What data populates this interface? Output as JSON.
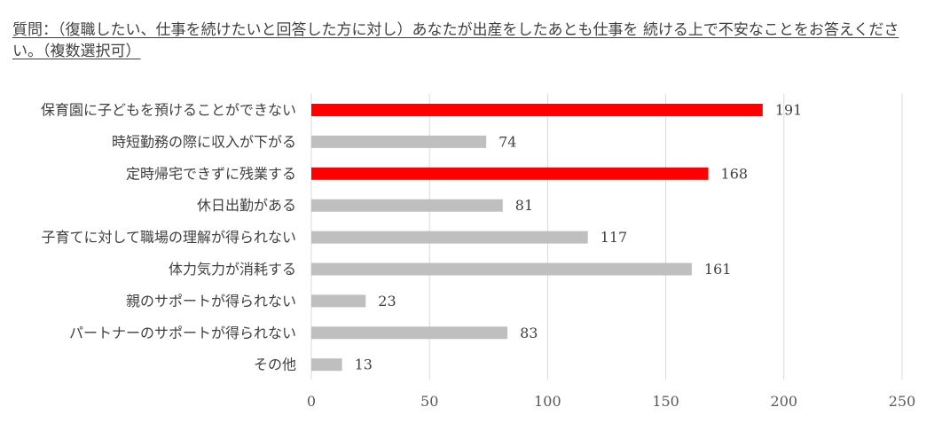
{
  "chart_data": {
    "type": "bar",
    "orientation": "horizontal",
    "title": "質問：（復職したい、仕事を続けたいと回答した方に対し）あなたが出産をしたあとも仕事を 続ける上で不安なことをお答えください。（複数選択可）",
    "categories": [
      "保育園に子どもを預けることができない",
      "時短勤務の際に収入が下がる",
      "定時帰宅できずに残業する",
      "休日出勤がある",
      "子育てに対して職場の理解が得られない",
      "体力気力が消耗する",
      "親のサポートが得られない",
      "パートナーのサポートが得られない",
      "その他"
    ],
    "values": [
      191,
      74,
      168,
      81,
      117,
      161,
      23,
      83,
      13
    ],
    "highlight": [
      true,
      false,
      true,
      false,
      false,
      false,
      false,
      false,
      false
    ],
    "colors": {
      "highlight": "#ff0000",
      "default": "#bfbfbf",
      "grid": "#d9d9d9",
      "text": "#404040"
    },
    "xlim": [
      0,
      250
    ],
    "xticks": [
      0,
      50,
      100,
      150,
      200,
      250
    ],
    "xtick_labels": [
      "0",
      "50",
      "100",
      "150",
      "200",
      "250"
    ],
    "grid": true,
    "data_labels": true,
    "legend": "none"
  }
}
